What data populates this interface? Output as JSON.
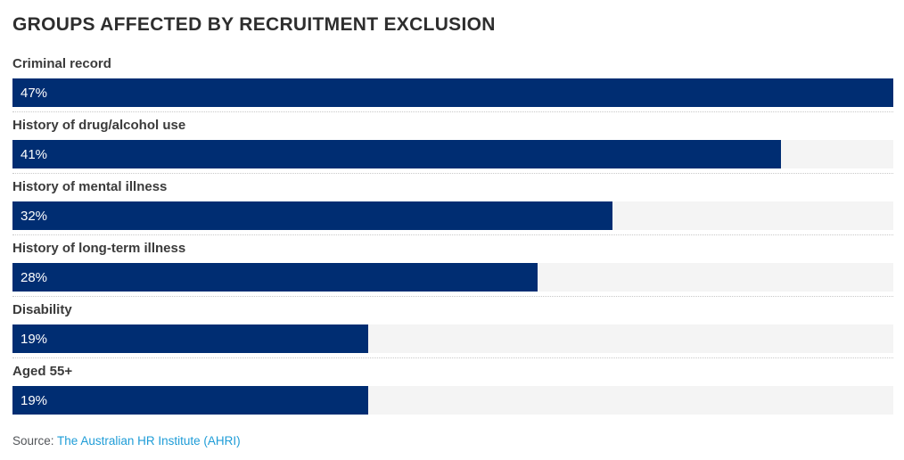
{
  "header": {
    "title": "GROUPS AFFECTED BY RECRUITMENT EXCLUSION"
  },
  "chart_data": {
    "type": "bar",
    "orientation": "horizontal",
    "title": "GROUPS AFFECTED BY RECRUITMENT EXCLUSION",
    "categories": [
      "Criminal record",
      "History of drug/alcohol use",
      "History of mental illness",
      "History of long-term illness",
      "Disability",
      "Aged 55+"
    ],
    "values": [
      47,
      41,
      32,
      28,
      19,
      19
    ],
    "value_labels": [
      "47%",
      "41%",
      "32%",
      "28%",
      "19%",
      "19%"
    ],
    "unit": "%",
    "scale_max": 47,
    "grid": false,
    "legend": false,
    "colors": {
      "bar_fill": "#002d72",
      "bar_track": "#f4f4f4",
      "value_text": "#ffffff",
      "label_text": "#3b3b3b",
      "separator": "#c9c9c9"
    }
  },
  "footer": {
    "source_prefix": "Source: ",
    "source_link": "The Australian HR Institute (AHRI)",
    "link_color": "#1e9cd7"
  }
}
